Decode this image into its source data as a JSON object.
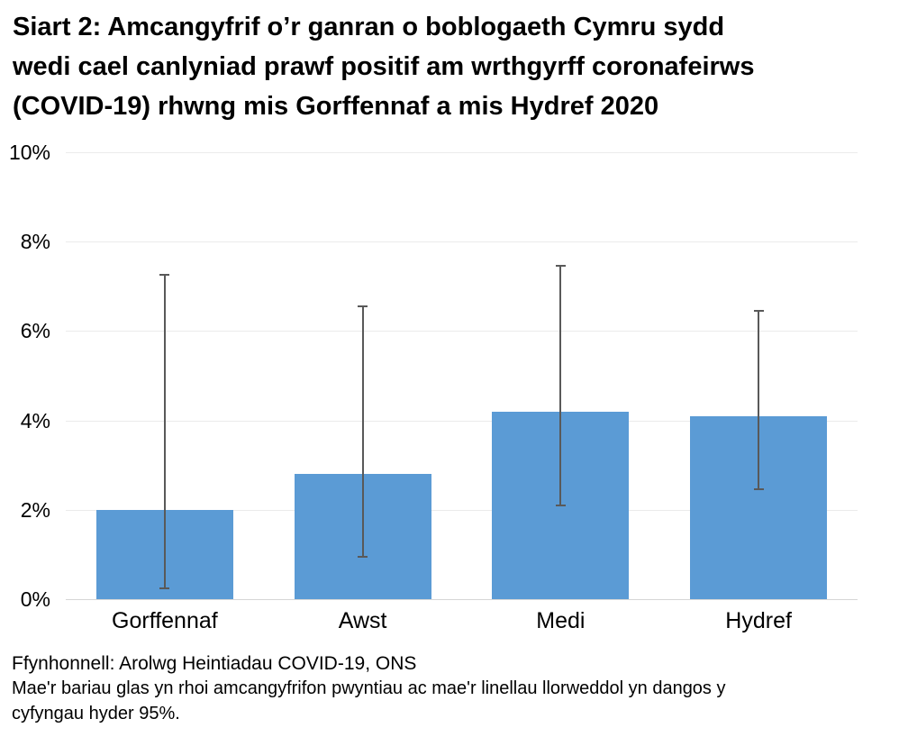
{
  "header": {
    "title_lines": [
      "Siart 2: Amcangyfrif o’r ganran o boblogaeth Cymru sydd",
      "wedi cael canlyniad prawf positif am wrthgyrff coronafeirws",
      "(COVID-19) rhwng mis Gorffennaf a mis Hydref 2020"
    ]
  },
  "chart_data": {
    "type": "bar",
    "title": "Siart 2: Amcangyfrif o’r ganran o boblogaeth Cymru sydd wedi cael canlyniad prawf positif am wrthgyrff coronafeirws (COVID-19) rhwng mis Gorffennaf a mis Hydref 2020",
    "categories": [
      "Gorffennaf",
      "Awst",
      "Medi",
      "Hydref"
    ],
    "values": [
      2.0,
      2.8,
      4.2,
      4.1
    ],
    "error_bars_95ci": {
      "low": [
        0.25,
        0.95,
        2.1,
        2.45
      ],
      "high": [
        7.25,
        6.55,
        7.45,
        6.45
      ]
    },
    "xlabel": "",
    "ylabel": "",
    "ylim": [
      0,
      10
    ],
    "ytick_values": [
      0,
      2,
      4,
      6,
      8,
      10
    ],
    "ytick_labels": [
      "0%",
      "2%",
      "4%",
      "6%",
      "8%",
      "10%"
    ],
    "grid": "horizontal",
    "legend": "none",
    "bar_color": "#5b9bd5",
    "error_bar_color": "#595959"
  },
  "footer": {
    "source": "Ffynhonnell: Arolwg Heintiadau COVID-19, ONS",
    "note_lines": [
      "Mae'r bariau glas yn rhoi amcangyfrifon pwyntiau ac mae'r linellau llorweddol yn dangos y",
      "cyfyngau hyder 95%."
    ]
  }
}
